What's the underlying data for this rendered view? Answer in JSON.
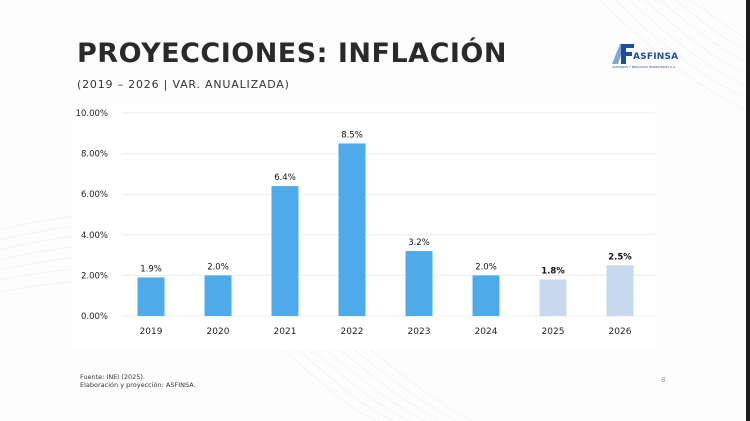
{
  "header": {
    "title": "PROYECCIONES: INFLACIÓN",
    "subtitle": "(2019 – 2026 | VAR. ANUALIZADA)"
  },
  "logo": {
    "name": "ASFINSA",
    "tagline": "ASESORES Y NEGOCIOS FINANCIEROS S.A.",
    "primary_color": "#1d4f9b",
    "secondary_color": "#7fa7da"
  },
  "footer": {
    "source": "Fuente: INEI (2025).",
    "credit": "Elaboración y proyección: ASFINSA.",
    "page_number": "8"
  },
  "chart_data": {
    "type": "bar",
    "title": "PROYECCIONES: INFLACIÓN",
    "subtitle": "(2019 – 2026 | VAR. ANUALIZADA)",
    "xlabel": "",
    "ylabel": "",
    "ylim": [
      0,
      10
    ],
    "grid": true,
    "yticks": [
      "0.00%",
      "2.00%",
      "4.00%",
      "6.00%",
      "8.00%",
      "10.00%"
    ],
    "categories": [
      "2019",
      "2020",
      "2021",
      "2022",
      "2023",
      "2024",
      "2025",
      "2026"
    ],
    "values": [
      1.9,
      2.0,
      6.4,
      8.5,
      3.2,
      2.0,
      1.8,
      2.5
    ],
    "data_labels": [
      "1.9%",
      "2.0%",
      "6.4%",
      "8.5%",
      "3.2%",
      "2.0%",
      "1.8%",
      "2.5%"
    ],
    "projected": [
      false,
      false,
      false,
      false,
      false,
      false,
      true,
      true
    ],
    "colors": {
      "actual": "#4eaae8",
      "projected": "#c8d8ee",
      "grid": "#ececec"
    }
  }
}
